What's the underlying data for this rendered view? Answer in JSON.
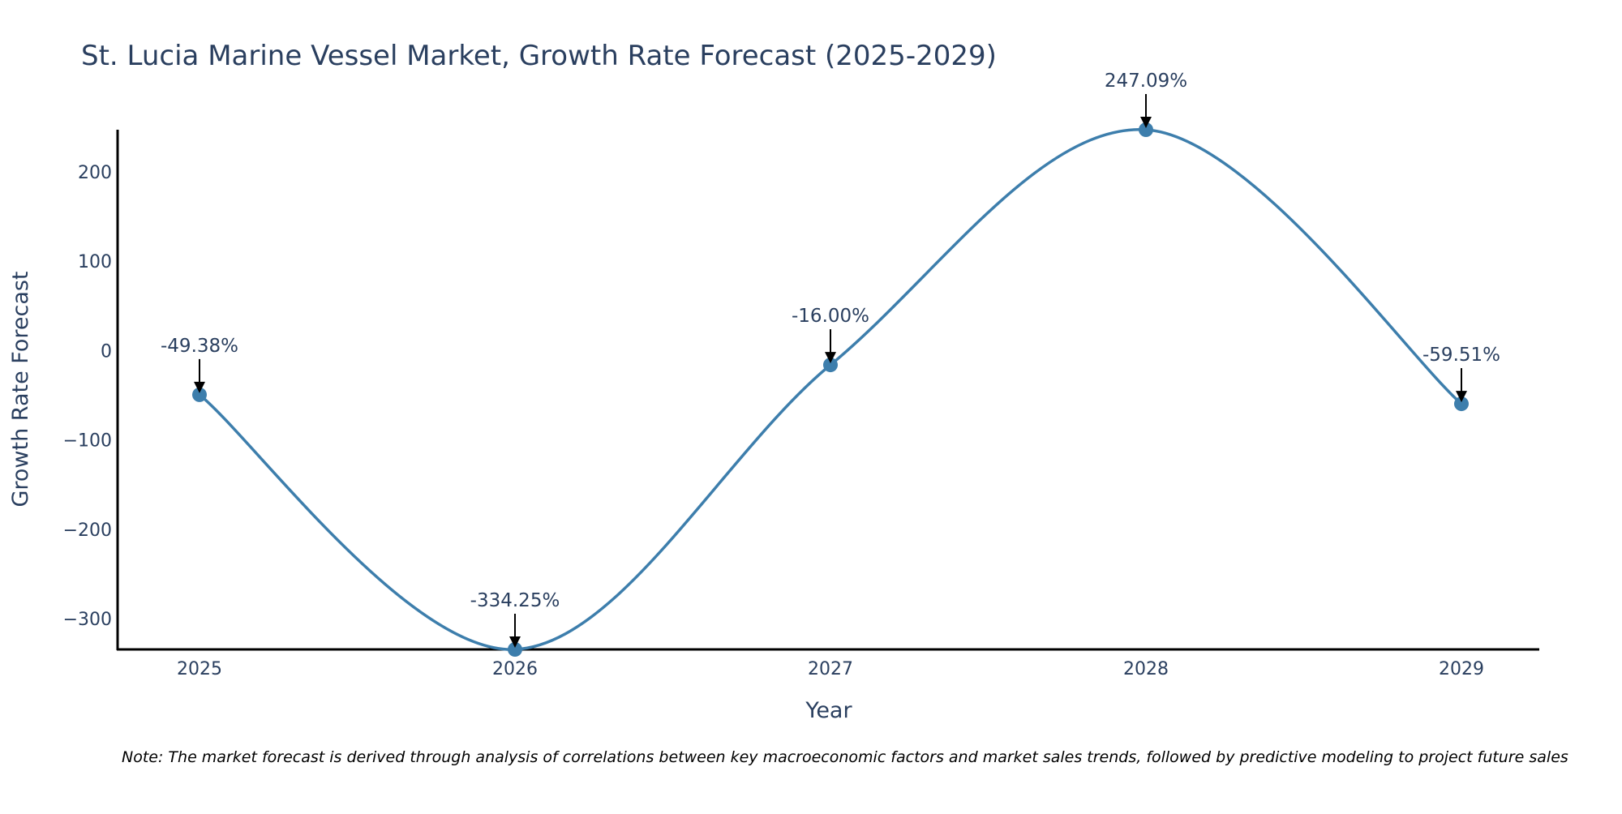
{
  "chart_data": {
    "type": "line",
    "title": "St. Lucia Marine Vessel Market, Growth Rate Forecast (2025-2029)",
    "xlabel": "Year",
    "ylabel": "Growth Rate Forecast",
    "categories": [
      "2025",
      "2026",
      "2027",
      "2028",
      "2029"
    ],
    "series": [
      {
        "name": "Growth Rate Forecast",
        "values": [
          -49.38,
          -334.25,
          -16.0,
          247.09,
          -59.51
        ]
      }
    ],
    "data_labels": [
      "-49.38%",
      "-334.25%",
      "-16.00%",
      "247.09%",
      "-59.51%"
    ],
    "y_ticks": [
      200,
      100,
      0,
      -100,
      -200,
      -300
    ],
    "y_tick_labels": [
      "200",
      "100",
      "0",
      "−100",
      "−200",
      "−300"
    ],
    "ylim": [
      -334.25,
      247.09
    ],
    "grid": false,
    "line_shape": "smooth",
    "marker": "circle",
    "line_color": "#3d7eac",
    "marker_color": "#3d7eac",
    "note": "Note: The market forecast is derived through analysis of correlations between key macroeconomic factors and market sales trends, followed by predictive modeling to project future sales"
  }
}
